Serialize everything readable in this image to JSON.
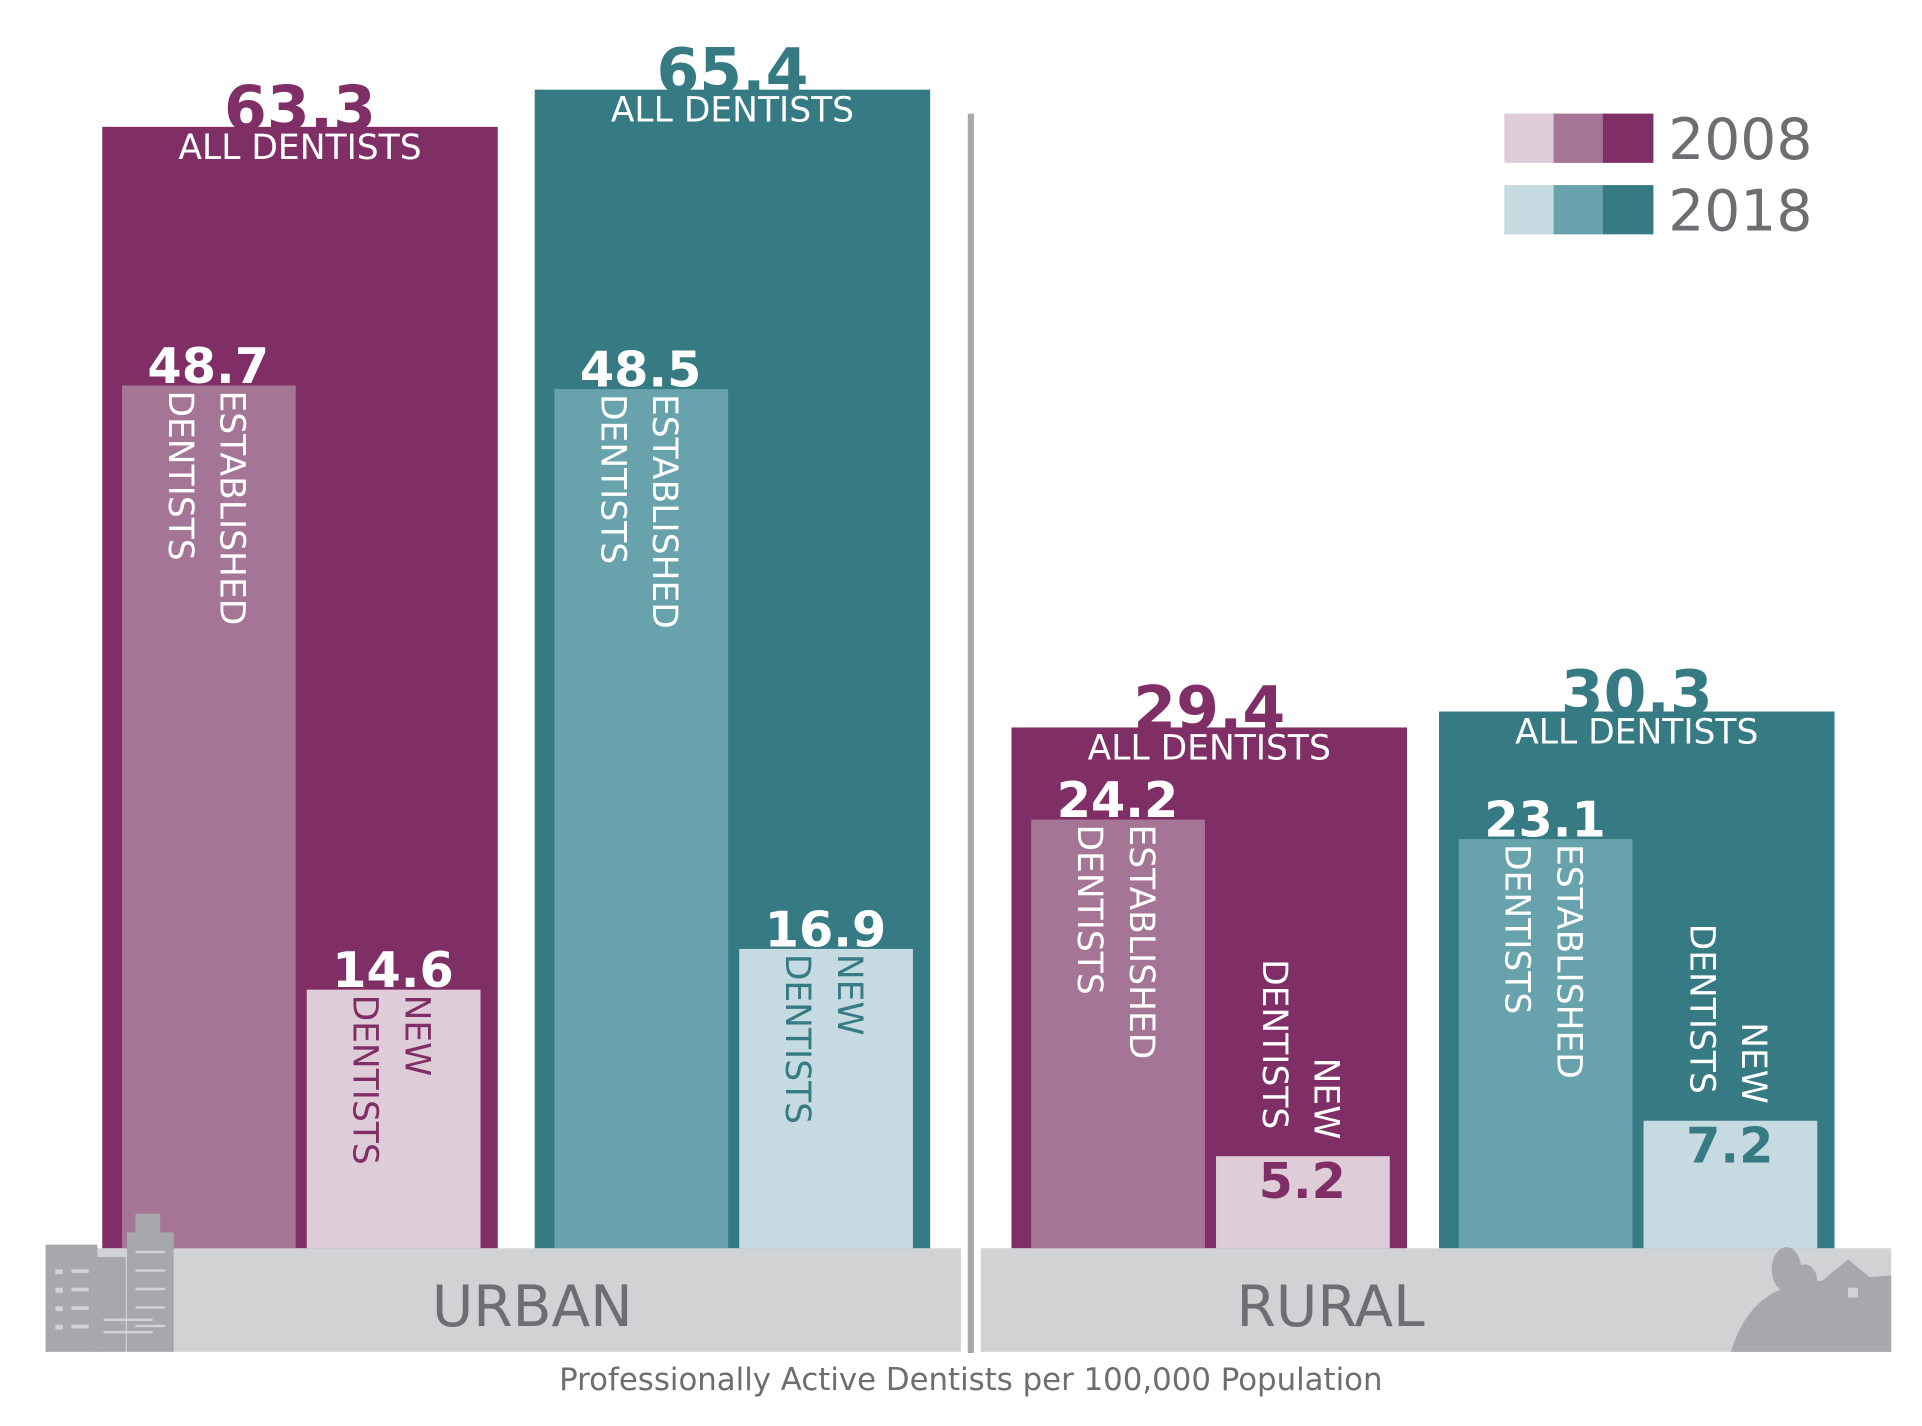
{
  "chart_data": {
    "type": "bar",
    "caption": "Professionally Active Dentists per 100,000 Population",
    "total_label": "ALL DENTISTS",
    "established_label": [
      "ESTABLISHED",
      "DENTISTS"
    ],
    "new_label": [
      "NEW",
      "DENTISTS"
    ],
    "legend": [
      {
        "label": "2008",
        "colors": [
          "#dfccd9",
          "#a57595",
          "#802f66"
        ]
      },
      {
        "label": "2018",
        "colors": [
          "#c6dbe1",
          "#68a3ad",
          "#367a84"
        ]
      }
    ],
    "categories": [
      "URBAN",
      "RURAL"
    ],
    "series": [
      {
        "category": "URBAN",
        "year": "2008",
        "all": 63.3,
        "established": 48.7,
        "new": 14.6
      },
      {
        "category": "URBAN",
        "year": "2018",
        "all": 65.4,
        "established": 48.5,
        "new": 16.9
      },
      {
        "category": "RURAL",
        "year": "2008",
        "all": 29.4,
        "established": 24.2,
        "new": 5.2
      },
      {
        "category": "RURAL",
        "year": "2018",
        "all": 30.3,
        "established": 23.1,
        "new": 7.2
      }
    ],
    "ylim": [
      0,
      70
    ]
  }
}
